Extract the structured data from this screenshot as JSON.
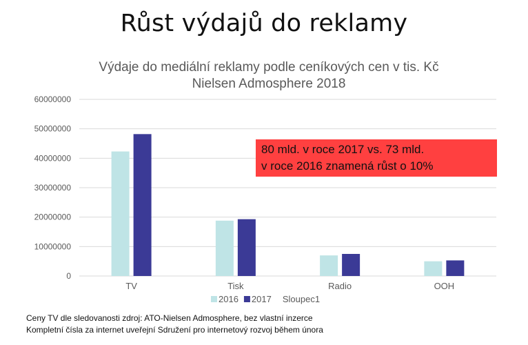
{
  "slide": {
    "title": "Růst výdajů do reklamy"
  },
  "callout": {
    "line1": "80 mld. v roce 2017 vs. 73 mld.",
    "line2": "v roce 2016 znamená růst o 10%",
    "color": "#ff4040"
  },
  "source_note": {
    "line1": "Ceny TV dle sledovanosti zdroj: ATO-Nielsen Admosphere, bez vlastní inzerce",
    "line2": "Kompletní čísla za internet uveřejní Sdružení pro internetový rozvoj během února"
  },
  "chart_data": {
    "type": "bar",
    "title_line1": "Výdaje do mediální reklamy podle ceníkových cen v tis. Kč",
    "title_line2": "Nielsen Admosphere 2018",
    "categories": [
      "TV",
      "Tisk",
      "Radio",
      "OOH"
    ],
    "series": [
      {
        "name": "2016",
        "values": [
          42300000,
          18800000,
          7000000,
          5000000
        ],
        "color": "#bfe4e6"
      },
      {
        "name": "2017",
        "values": [
          48200000,
          19300000,
          7500000,
          5300000
        ],
        "color": "#3b3a96"
      },
      {
        "name": "Sloupec1",
        "values": [
          0,
          0,
          0,
          0
        ],
        "color": "#a5a5a5"
      }
    ],
    "ylim": [
      0,
      60000000
    ],
    "yticks": [
      0,
      10000000,
      20000000,
      30000000,
      40000000,
      50000000,
      60000000
    ],
    "ytick_labels": [
      "0",
      "10000000",
      "20000000",
      "30000000",
      "40000000",
      "50000000",
      "60000000"
    ],
    "grid": true,
    "legend_position": "bottom"
  }
}
